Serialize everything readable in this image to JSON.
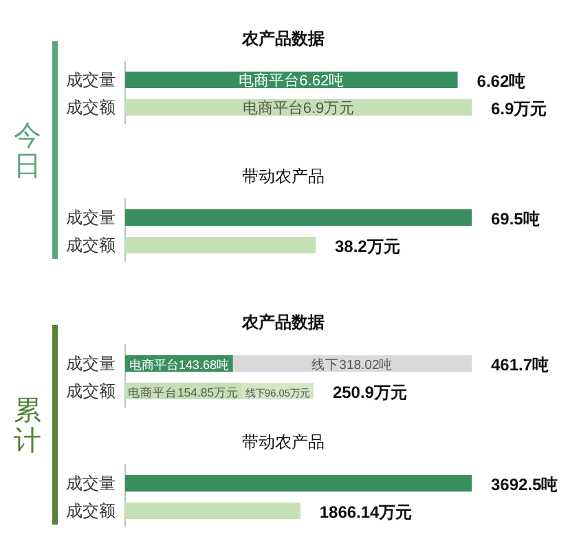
{
  "chart_data": [
    {
      "type": "bar",
      "orientation": "horizontal",
      "title": "农产品数据",
      "categories": [
        "成交量",
        "成交额"
      ],
      "annotations": [
        "今日"
      ],
      "series": [
        {
          "colors": [
            "#3a8f5e",
            "#c5e0b4"
          ],
          "values": [
            6.62,
            6.9
          ],
          "value_labels": [
            "电商平台6.62吨",
            "电商平台6.9万元"
          ]
        }
      ],
      "totals": [
        "6.62吨",
        "6.9万元"
      ]
    },
    {
      "type": "bar",
      "orientation": "horizontal",
      "title": "带动农产品",
      "categories": [
        "成交量",
        "成交额"
      ],
      "series": [
        {
          "colors": [
            "#3a8f5e",
            "#c5e0b4"
          ],
          "values": [
            69.5,
            38.2
          ],
          "value_labels": [
            "69.5吨",
            "38.2万元"
          ]
        }
      ]
    },
    {
      "type": "bar",
      "orientation": "horizontal",
      "stacked": true,
      "title": "农产品数据",
      "categories": [
        "成交量",
        "成交额"
      ],
      "annotations": [
        "累计"
      ],
      "series": [
        {
          "colors": [
            "#3a8f5e",
            "#c5e0b4"
          ],
          "values": [
            143.68,
            154.85
          ],
          "value_labels": [
            "电商平台143.68吨",
            "电商平台154.85万元"
          ]
        },
        {
          "colors": [
            "#d9d9d9",
            "#d3e6c6"
          ],
          "values": [
            318.02,
            96.05
          ],
          "value_labels": [
            "线下318.02吨",
            "线下96.05万元"
          ]
        }
      ],
      "totals": [
        "461.7吨",
        "250.9万元"
      ]
    },
    {
      "type": "bar",
      "orientation": "horizontal",
      "title": "带动农产品",
      "categories": [
        "成交量",
        "成交额"
      ],
      "series": [
        {
          "colors": [
            "#3a8f5e",
            "#c5e0b4"
          ],
          "values": [
            3692.5,
            1866.14
          ],
          "value_labels": [
            "3692.5吨",
            "1866.14万元"
          ]
        }
      ]
    }
  ]
}
